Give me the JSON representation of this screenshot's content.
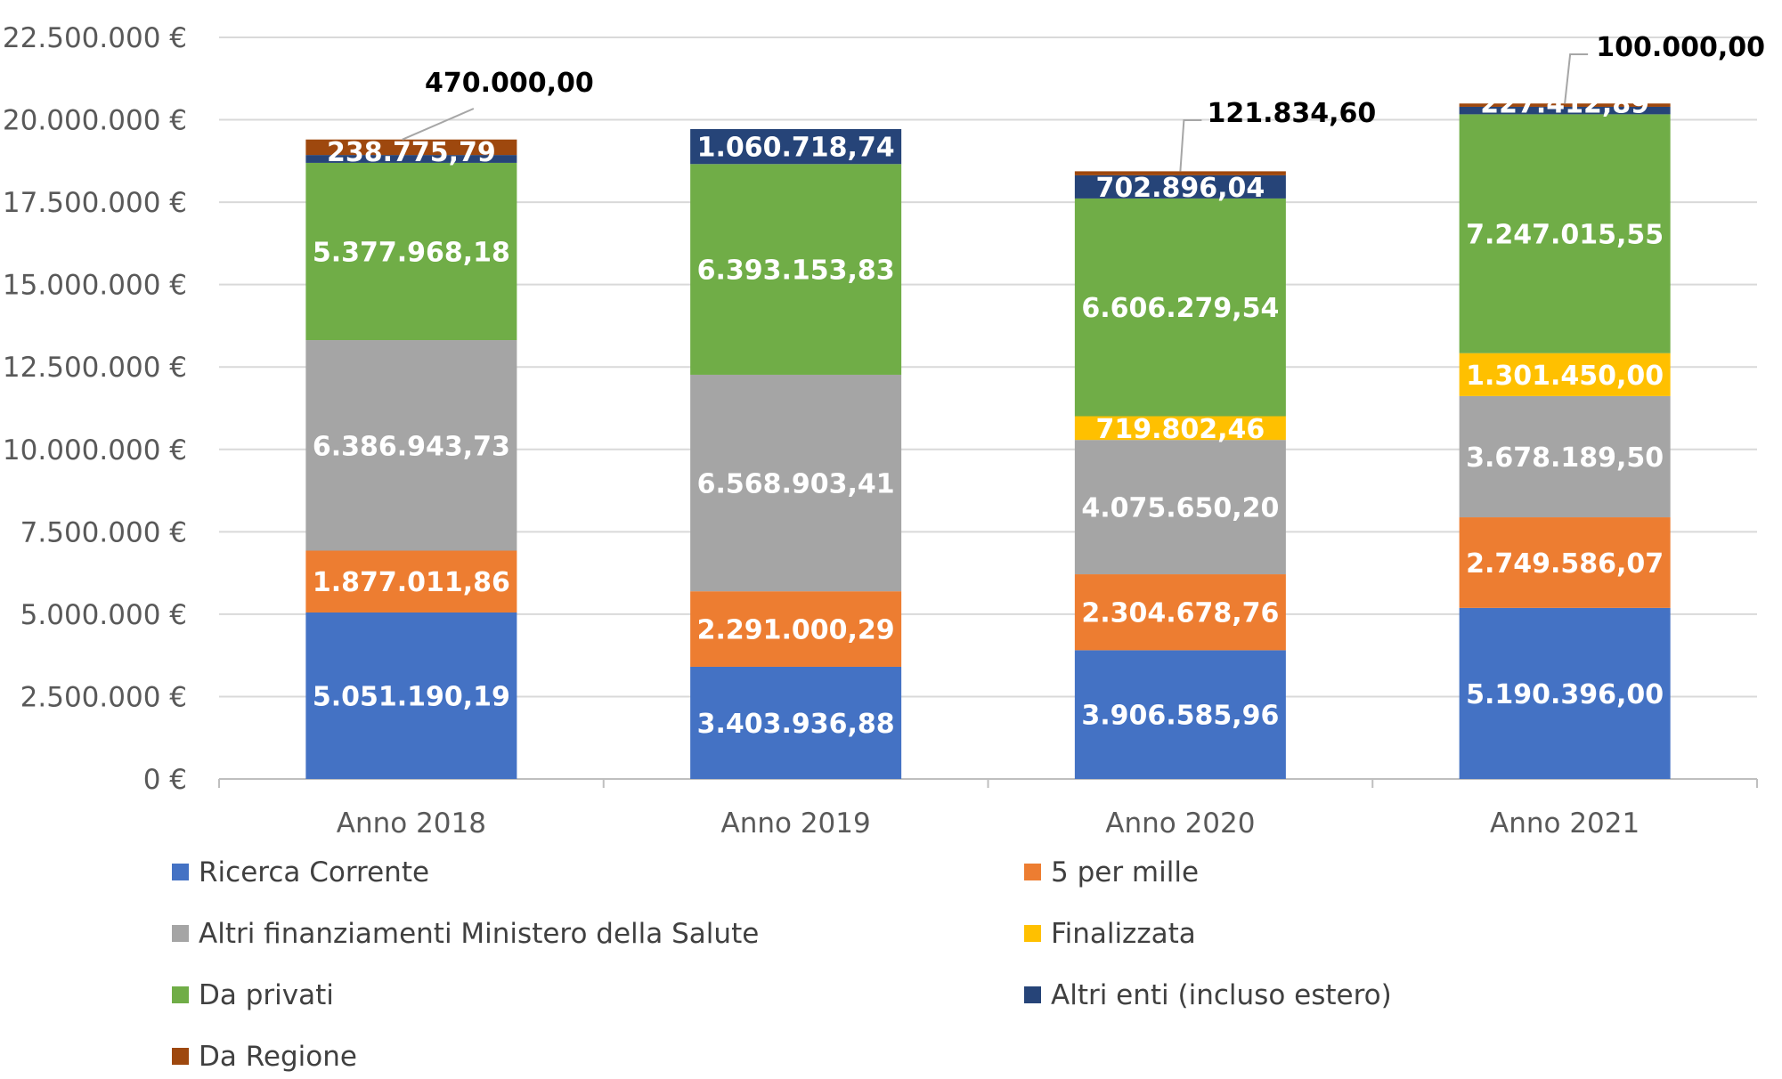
{
  "chart_data": {
    "type": "bar",
    "stacked": true,
    "title": "",
    "xlabel": "",
    "ylabel": "",
    "ylim": [
      0,
      22500000
    ],
    "yticks": [
      0,
      2500000,
      5000000,
      7500000,
      10000000,
      12500000,
      15000000,
      17500000,
      20000000,
      22500000
    ],
    "ytick_labels": [
      "0 €",
      "2.500.000 €",
      "5.000.000 €",
      "7.500.000 €",
      "10.000.000 €",
      "12.500.000 €",
      "15.000.000 €",
      "17.500.000 €",
      "20.000.000 €",
      "22.500.000 €"
    ],
    "grid": true,
    "legend_position": "bottom",
    "categories": [
      "Anno 2018",
      "Anno 2019",
      "Anno 2020",
      "Anno 2021"
    ],
    "series": [
      {
        "name": "Ricerca Corrente",
        "color": "#4472C4",
        "values": [
          5051190.19,
          3403936.88,
          3906585.96,
          5190396.0
        ],
        "labels": [
          "5.051.190,19",
          "3.403.936,88",
          "3.906.585,96",
          "5.190.396,00"
        ]
      },
      {
        "name": "5 per mille",
        "color": "#ED7D31",
        "values": [
          1877011.86,
          2291000.29,
          2304678.76,
          2749586.07
        ],
        "labels": [
          "1.877.011,86",
          "2.291.000,29",
          "2.304.678,76",
          "2.749.586,07"
        ]
      },
      {
        "name": "Altri finanziamenti Ministero della Salute",
        "color": "#A5A5A5",
        "values": [
          6386943.73,
          6568903.41,
          4075650.2,
          3678189.5
        ],
        "labels": [
          "6.386.943,73",
          "6.568.903,41",
          "4.075.650,20",
          "3.678.189,50"
        ]
      },
      {
        "name": "Finalizzata",
        "color": "#FFC000",
        "values": [
          0,
          0,
          719802.46,
          1301450.0
        ],
        "labels": [
          "",
          "",
          "719.802,46",
          "1.301.450,00"
        ]
      },
      {
        "name": "Da privati",
        "color": "#70AD47",
        "values": [
          5377968.18,
          6393153.83,
          6606279.54,
          7247015.55
        ],
        "labels": [
          "5.377.968,18",
          "6.393.153,83",
          "6.606.279,54",
          "7.247.015,55"
        ]
      },
      {
        "name": "Altri enti (incluso estero)",
        "color": "#264478",
        "values": [
          238775.79,
          1060718.74,
          702896.04,
          227412.89
        ],
        "labels": [
          "238.775,79",
          "1.060.718,74",
          "702.896,04",
          "227.412,89"
        ]
      },
      {
        "name": "Da Regione",
        "color": "#9E480E",
        "values": [
          470000.0,
          0,
          121834.6,
          100000.0
        ],
        "labels": [
          "470.000,00",
          "",
          "121.834,60",
          "100.000,00"
        ]
      }
    ]
  }
}
